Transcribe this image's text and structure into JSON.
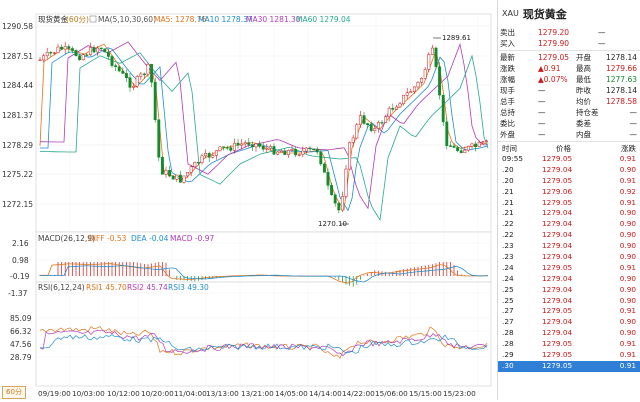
{
  "main_panel": {
    "title": "现货黄金",
    "period_tag": "(60分)",
    "ma_label": "MA(5,10,30,60)",
    "ma_values": [
      {
        "label": "MA5: 1278.76",
        "color": "#e0741b"
      },
      {
        "label": "MA10 1278.37",
        "color": "#1f8fd0"
      },
      {
        "label": "MA30 1281.30",
        "color": "#b03bb8"
      },
      {
        "label": "MA60 1279.04",
        "color": "#27a98f"
      }
    ],
    "y_ticks": [
      "1290.58",
      "1287.51",
      "1284.44",
      "1281.37",
      "1278.29",
      "1275.22",
      "1272.15"
    ],
    "high_marker": "1289.61",
    "low_marker": "1270.10"
  },
  "macd_panel": {
    "label": "MACD(26,12,9)",
    "diff": "DIFF -0.53",
    "dea": "DEA -0.04",
    "macd": "MACD -0.97",
    "y_ticks": [
      "2.16",
      "0.98",
      "-0.19",
      "-1.37"
    ]
  },
  "rsi_panel": {
    "label": "RSI(6,12,24)",
    "rsi1": "RSI1 45.70",
    "rsi2": "RSI2 45.74",
    "rsi3": "RSI3 49.30",
    "y_ticks": [
      "85.09",
      "66.32",
      "47.56",
      "28.79"
    ]
  },
  "x_labels": [
    "09/19:00",
    "10/03:00",
    "10/12:00",
    "10/20:00",
    "11/04:00",
    "13/13:00",
    "13/21:00",
    "14/05:00",
    "14/14:00",
    "14/22:00",
    "15/06:00",
    "15/15:00",
    "15/23:00"
  ],
  "period_button": "60分",
  "colors": {
    "up": "#d01818",
    "down": "#148a2a",
    "accent": "#c07a1c"
  },
  "quote": {
    "symbol": "XAU",
    "name": "现货黄金",
    "bid_ask": [
      {
        "label": "卖出",
        "value": "1279.20",
        "tail": "—"
      },
      {
        "label": "买入",
        "value": "1279.90",
        "tail": "—"
      }
    ],
    "stats": [
      {
        "l1": "最新",
        "v1": "1279.05",
        "v1c": "red",
        "l2": "开盘",
        "v2": "1278.14",
        "v2c": "dark"
      },
      {
        "l1": "涨跌",
        "v1": "▲0.91",
        "v1c": "red",
        "l2": "最高",
        "v2": "1279.66",
        "v2c": "red"
      },
      {
        "l1": "涨幅",
        "v1": "▲0.07%",
        "v1c": "red",
        "l2": "最低",
        "v2": "1277.63",
        "v2c": "green"
      },
      {
        "l1": "现手",
        "v1": "—",
        "v1c": "dark",
        "l2": "昨收",
        "v2": "1278.14",
        "v2c": "dark"
      },
      {
        "l1": "总手",
        "v1": "—",
        "v1c": "dark",
        "l2": "均价",
        "v2": "1278.58",
        "v2c": "red"
      },
      {
        "l1": "总持",
        "v1": "—",
        "v1c": "dark",
        "l2": "持仓差",
        "v2": "—",
        "v2c": "dark"
      },
      {
        "l1": "委比",
        "v1": "—",
        "v1c": "dark",
        "l2": "委差",
        "v2": "—",
        "v2c": "dark"
      },
      {
        "l1": "外盘",
        "v1": "—",
        "v1c": "dark",
        "l2": "内盘",
        "v2": "—",
        "v2c": "dark"
      }
    ],
    "tick_headers": [
      "时间",
      "价格",
      "涨跌"
    ],
    "ticks": [
      {
        "t": "09:55",
        "p": "1279.05",
        "c": "0.91"
      },
      {
        "t": ".20",
        "p": "1279.04",
        "c": "0.90"
      },
      {
        "t": ".20",
        "p": "1279.05",
        "c": "0.91"
      },
      {
        "t": ".21",
        "p": "1279.06",
        "c": "0.92"
      },
      {
        "t": ".21",
        "p": "1279.05",
        "c": "0.91"
      },
      {
        "t": ".21",
        "p": "1279.04",
        "c": "0.90"
      },
      {
        "t": ".22",
        "p": "1279.04",
        "c": "0.90"
      },
      {
        "t": ".22",
        "p": "1279.04",
        "c": "0.90"
      },
      {
        "t": ".23",
        "p": "1279.04",
        "c": "0.90"
      },
      {
        "t": ".23",
        "p": "1279.04",
        "c": "0.90"
      },
      {
        "t": ".24",
        "p": "1279.05",
        "c": "0.91"
      },
      {
        "t": ".24",
        "p": "1279.04",
        "c": "0.90"
      },
      {
        "t": ".25",
        "p": "1279.04",
        "c": "0.90"
      },
      {
        "t": ".25",
        "p": "1279.04",
        "c": "0.90"
      },
      {
        "t": ".27",
        "p": "1279.05",
        "c": "0.91"
      },
      {
        "t": ".27",
        "p": "1279.04",
        "c": "0.90"
      },
      {
        "t": ".28",
        "p": "1279.04",
        "c": "0.90"
      },
      {
        "t": ".28",
        "p": "1279.05",
        "c": "0.91"
      },
      {
        "t": ".29",
        "p": "1279.05",
        "c": "0.91"
      },
      {
        "t": ".30",
        "p": "1279.05",
        "c": "0.91"
      }
    ]
  }
}
